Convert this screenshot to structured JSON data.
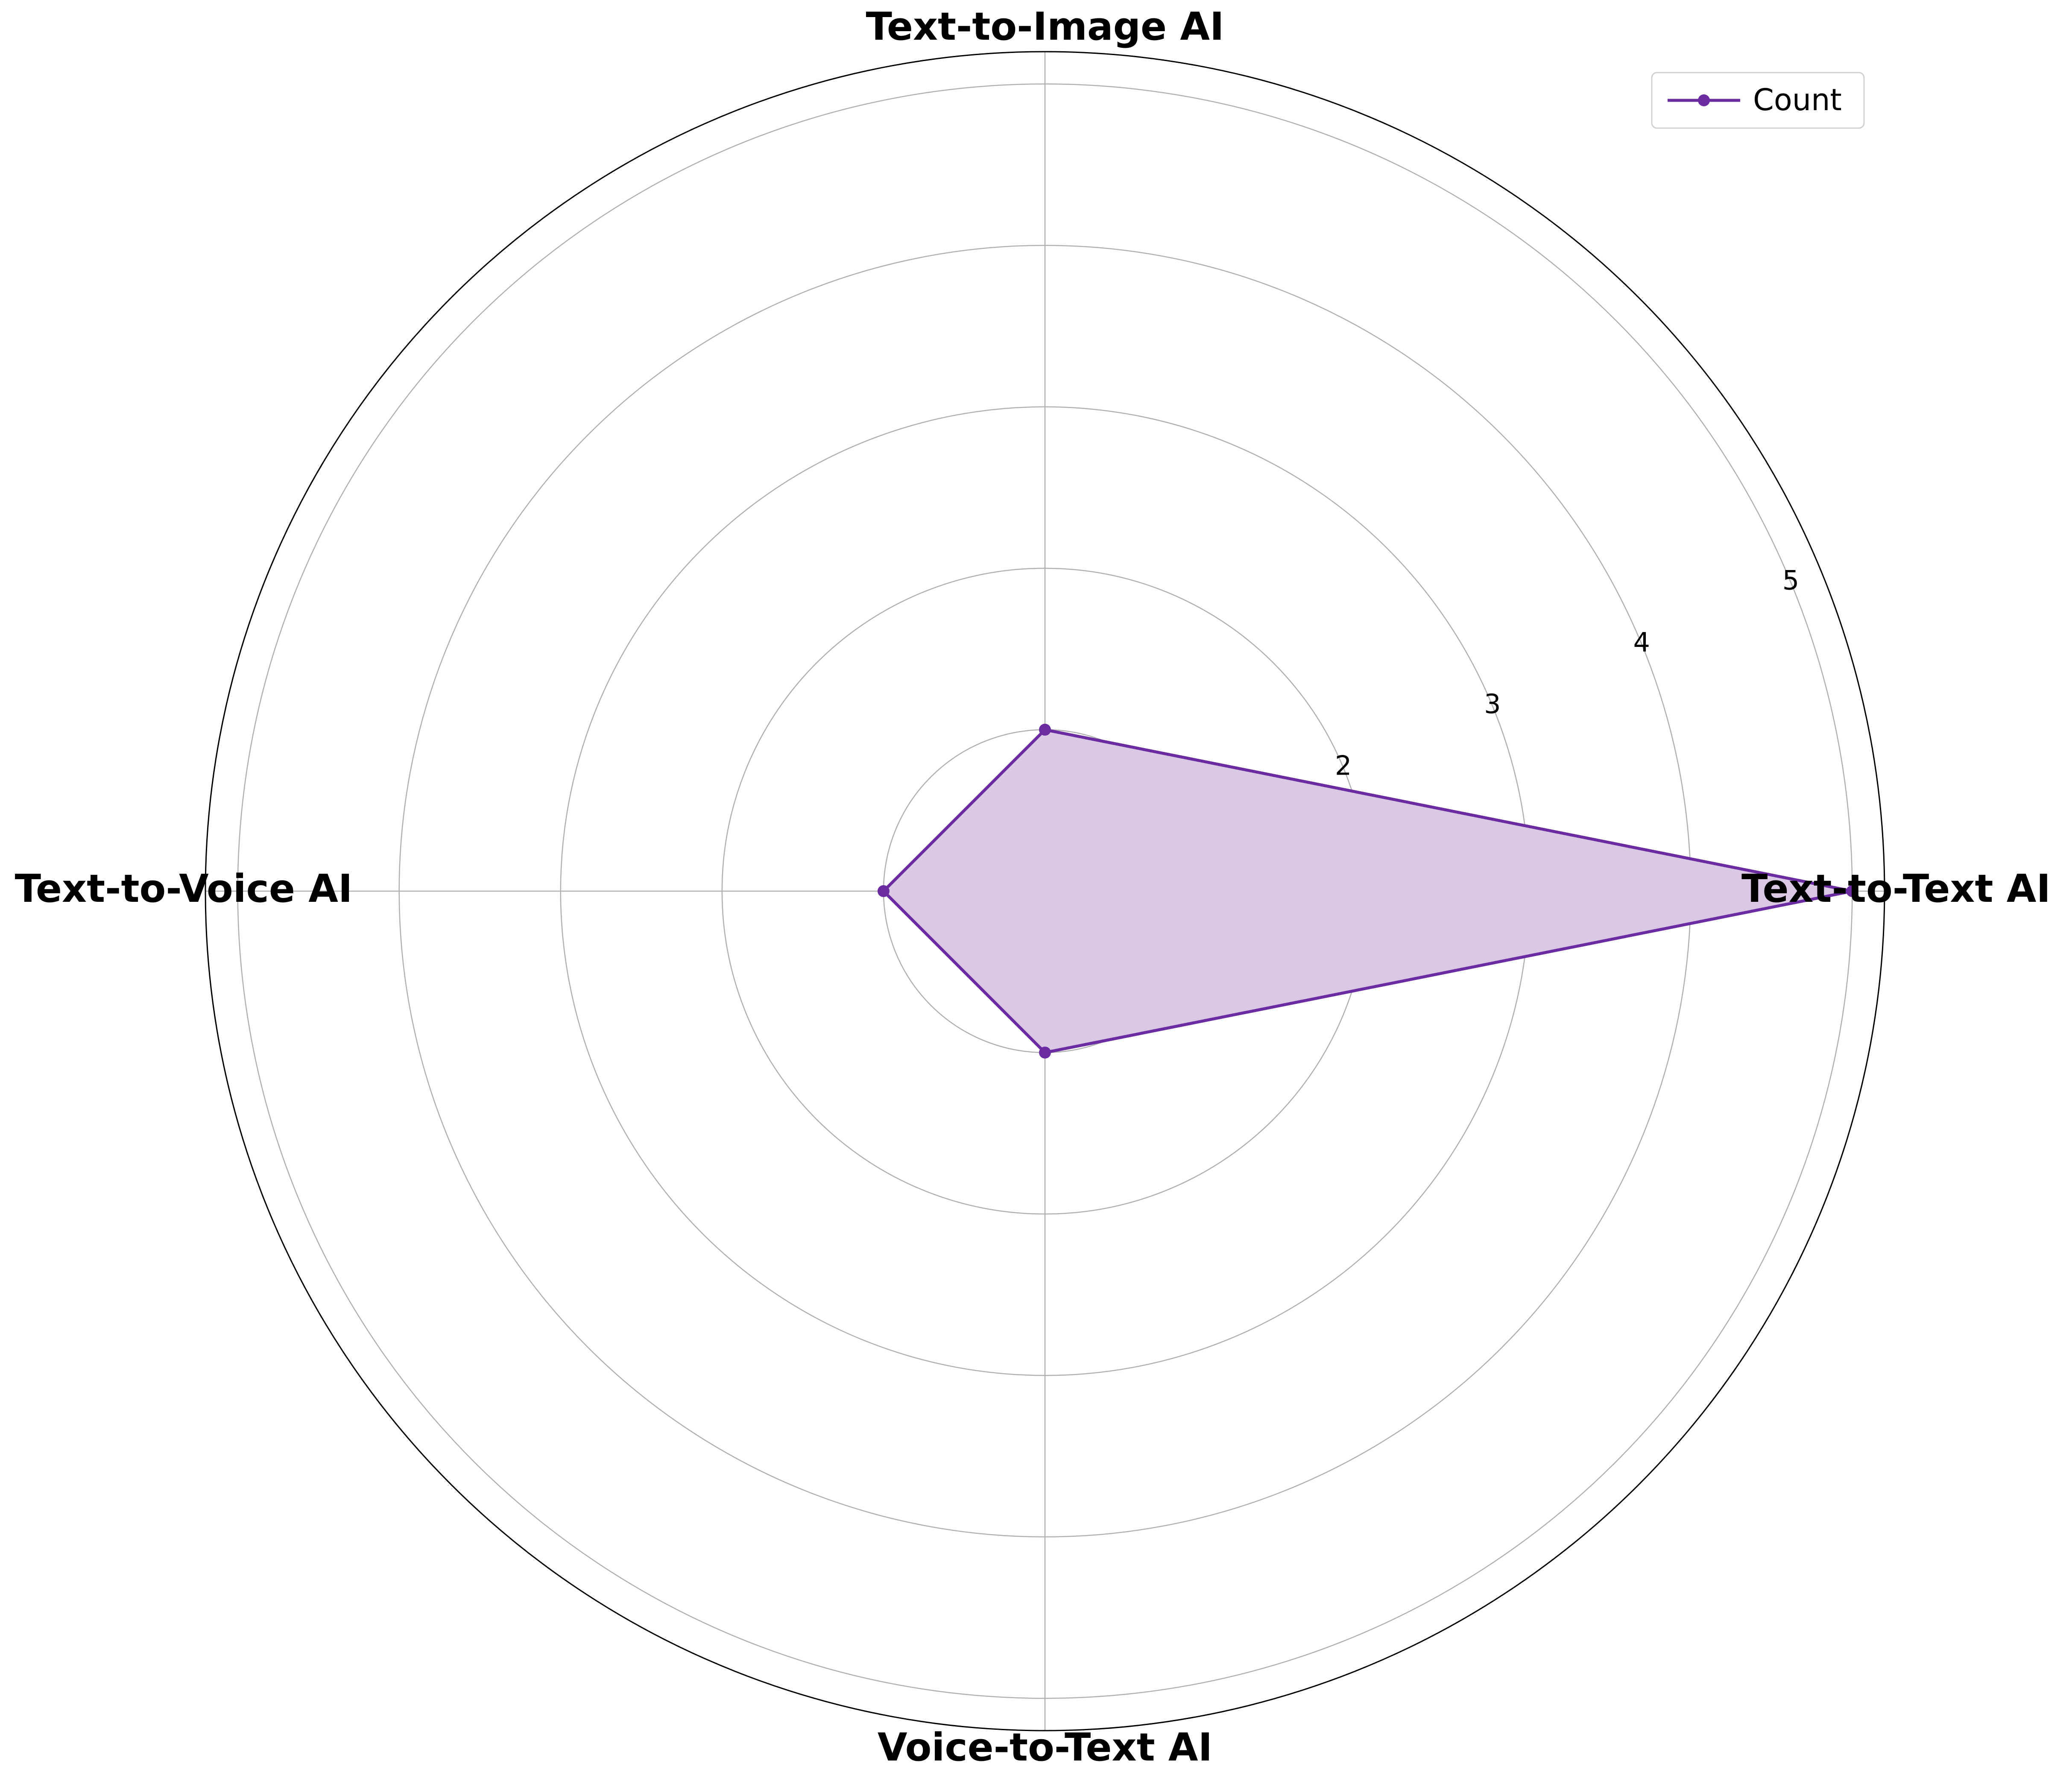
{
  "chart_data": {
    "type": "radar",
    "categories": [
      "Text-to-Text AI",
      "Text-to-Image AI",
      "Text-to-Voice AI",
      "Voice-to-Text AI"
    ],
    "series": [
      {
        "name": "Count",
        "values": [
          5,
          1,
          1,
          1
        ],
        "color": "#6a2ca0",
        "fill": "#dac8e5"
      }
    ],
    "radial_ticks": [
      "1",
      "2",
      "3",
      "4",
      "5"
    ],
    "r_range": [
      0,
      5.2
    ],
    "grid": true,
    "legend_position": "top-right"
  }
}
